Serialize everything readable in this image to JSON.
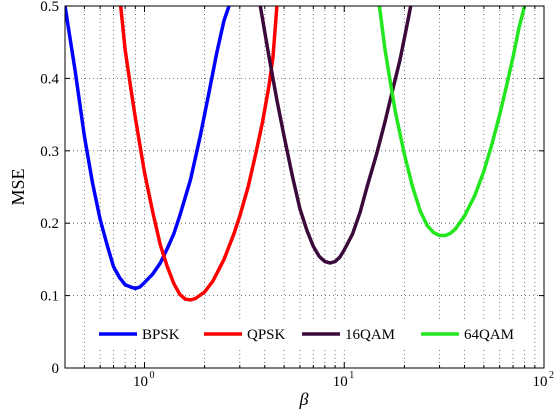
{
  "chart_data": {
    "type": "line",
    "title": "",
    "xlabel": "β",
    "ylabel": "MSE",
    "xscale": "log",
    "xlim": [
      0.4,
      100
    ],
    "ylim": [
      0,
      0.5
    ],
    "grid": true,
    "legend_placement": "bottom",
    "y_ticks": [
      0,
      0.1,
      0.2,
      0.3,
      0.4,
      0.5
    ],
    "y_tick_labels": [
      "0",
      "0.1",
      "0.2",
      "0.3",
      "0.4",
      "0.5"
    ],
    "x_ticks": [
      1,
      10,
      100
    ],
    "x_tick_labels": [
      {
        "base": "10",
        "exp": "0"
      },
      {
        "base": "10",
        "exp": "1"
      },
      {
        "base": "10",
        "exp": "2"
      }
    ],
    "series": [
      {
        "name": "BPSK",
        "color": "#0000ff",
        "x": [
          0.4,
          0.45,
          0.5,
          0.55,
          0.6,
          0.65,
          0.7,
          0.75,
          0.8,
          0.85,
          0.9,
          0.95,
          1.0,
          1.1,
          1.2,
          1.3,
          1.4,
          1.5,
          1.7,
          1.9,
          2.1,
          2.3,
          2.5,
          2.65
        ],
        "y": [
          0.5,
          0.41,
          0.32,
          0.255,
          0.205,
          0.17,
          0.14,
          0.125,
          0.115,
          0.112,
          0.11,
          0.112,
          0.118,
          0.13,
          0.145,
          0.165,
          0.185,
          0.21,
          0.26,
          0.32,
          0.38,
          0.435,
          0.48,
          0.5
        ]
      },
      {
        "name": "QPSK",
        "color": "#ff0000",
        "x": [
          0.76,
          0.8,
          0.85,
          0.9,
          1.0,
          1.1,
          1.2,
          1.3,
          1.4,
          1.5,
          1.6,
          1.7,
          1.8,
          2.0,
          2.2,
          2.5,
          2.8,
          3.0,
          3.3,
          3.6,
          3.9,
          4.2,
          4.4,
          4.6
        ],
        "y": [
          0.5,
          0.44,
          0.39,
          0.345,
          0.27,
          0.215,
          0.17,
          0.14,
          0.117,
          0.102,
          0.095,
          0.094,
          0.096,
          0.105,
          0.12,
          0.15,
          0.185,
          0.21,
          0.25,
          0.295,
          0.34,
          0.39,
          0.43,
          0.5
        ]
      },
      {
        "name": "16QAM",
        "color": "#3b0a3b",
        "x": [
          3.8,
          4.2,
          4.6,
          5.0,
          5.5,
          6.0,
          6.5,
          7.0,
          7.5,
          8.0,
          8.5,
          9.0,
          9.5,
          10.0,
          11.0,
          12.0,
          13.0,
          14.5,
          16.0,
          17.5,
          19.0,
          20.5,
          21.5
        ],
        "y": [
          0.5,
          0.43,
          0.37,
          0.32,
          0.265,
          0.22,
          0.19,
          0.168,
          0.154,
          0.147,
          0.145,
          0.147,
          0.153,
          0.163,
          0.185,
          0.215,
          0.25,
          0.295,
          0.34,
          0.385,
          0.425,
          0.47,
          0.5
        ]
      },
      {
        "name": "64QAM",
        "color": "#22e61e",
        "x": [
          15.0,
          16.0,
          17.0,
          18.0,
          20.0,
          22.0,
          24.0,
          26.0,
          28.0,
          30.0,
          32.0,
          34.0,
          36.0,
          40.0,
          45.0,
          50.0,
          55.0,
          60.0,
          65.0,
          70.0,
          75.0,
          80.0
        ],
        "y": [
          0.5,
          0.44,
          0.395,
          0.355,
          0.295,
          0.25,
          0.217,
          0.197,
          0.187,
          0.183,
          0.183,
          0.186,
          0.192,
          0.21,
          0.238,
          0.272,
          0.31,
          0.35,
          0.39,
          0.43,
          0.47,
          0.5
        ]
      }
    ]
  }
}
